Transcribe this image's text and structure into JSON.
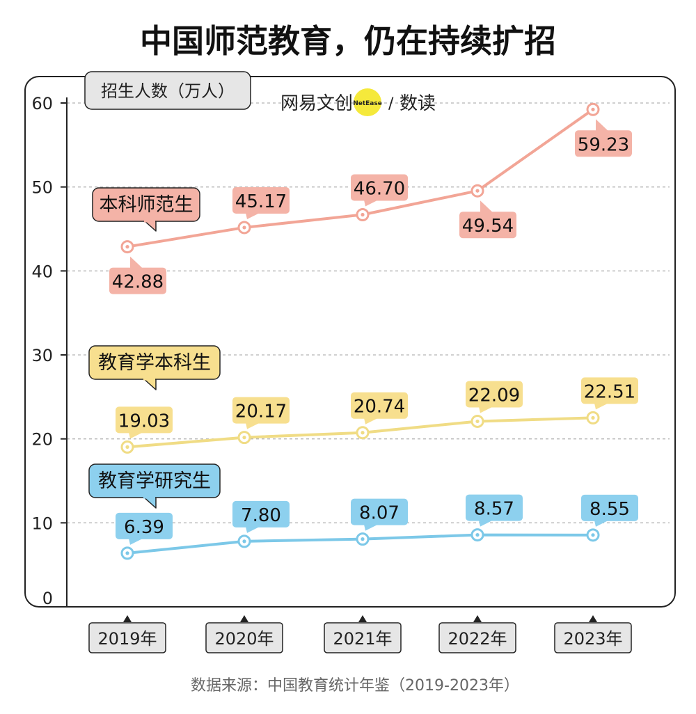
{
  "title": "中国师范教育，仍在持续扩招",
  "ylabel": "招生人数（万人）",
  "logo": {
    "brand": "网易文创",
    "badge": "NetEase",
    "sep": "/",
    "sub": "数读"
  },
  "source": "数据来源：中国教育统计年鉴（2019-2023年）",
  "colors": {
    "undergrad_teacher": "#F2A596",
    "undergrad_teacher_box": "#F4B3A7",
    "education_undergrad": "#F0DC85",
    "education_undergrad_box": "#F7DF8F",
    "education_grad": "#7CC8E8",
    "education_grad_box": "#8DD0EE"
  },
  "chart_data": {
    "type": "line",
    "title": "中国师范教育，仍在持续扩招",
    "xlabel": "",
    "ylabel": "招生人数（万人）",
    "ylim": [
      0,
      60
    ],
    "yticks": [
      0,
      10,
      20,
      30,
      40,
      50,
      60
    ],
    "grid": true,
    "legend": "inline-labels",
    "categories": [
      "2019年",
      "2020年",
      "2021年",
      "2022年",
      "2023年"
    ],
    "series": [
      {
        "name": "本科师范生",
        "values": [
          42.88,
          45.17,
          46.7,
          49.54,
          59.23
        ],
        "labels": [
          "42.88",
          "45.17",
          "46.70",
          "49.54",
          "59.23"
        ]
      },
      {
        "name": "教育学本科生",
        "values": [
          19.03,
          20.17,
          20.74,
          22.09,
          22.51
        ],
        "labels": [
          "19.03",
          "20.17",
          "20.74",
          "22.09",
          "22.51"
        ]
      },
      {
        "name": "教育学研究生",
        "values": [
          6.39,
          7.8,
          8.07,
          8.57,
          8.55
        ],
        "labels": [
          "6.39",
          "7.80",
          "8.07",
          "8.57",
          "8.55"
        ]
      }
    ]
  }
}
